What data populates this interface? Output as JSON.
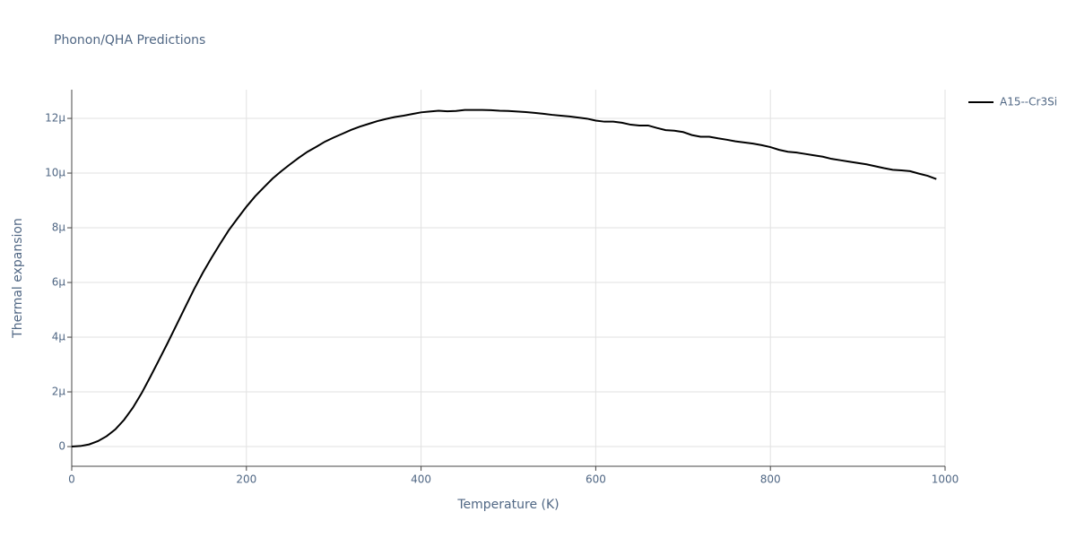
{
  "chart_data": {
    "type": "line",
    "title": "Phonon/QHA Predictions",
    "x_label": "Temperature (K)",
    "y_label": "Thermal expansion",
    "x": [
      0,
      10,
      20,
      30,
      40,
      50,
      60,
      70,
      80,
      90,
      100,
      110,
      120,
      130,
      140,
      150,
      160,
      170,
      180,
      190,
      200,
      210,
      220,
      230,
      240,
      250,
      260,
      270,
      280,
      290,
      300,
      310,
      320,
      330,
      340,
      350,
      360,
      370,
      380,
      390,
      400,
      410,
      420,
      430,
      440,
      450,
      460,
      470,
      480,
      490,
      500,
      510,
      520,
      530,
      540,
      550,
      560,
      570,
      580,
      590,
      600,
      610,
      620,
      630,
      640,
      650,
      660,
      670,
      680,
      690,
      700,
      710,
      720,
      730,
      740,
      750,
      760,
      770,
      780,
      790,
      800,
      810,
      820,
      830,
      840,
      850,
      860,
      870,
      880,
      890,
      900,
      910,
      920,
      930,
      940,
      950,
      960,
      970,
      980,
      990
    ],
    "series": [
      {
        "name": "A15--Cr3Si",
        "color": "#000000",
        "values": [
          0,
          2e-08,
          8e-08,
          2e-07,
          3.8e-07,
          6.3e-07,
          9.8e-07,
          1.42e-06,
          1.95e-06,
          2.55e-06,
          3.17e-06,
          3.8e-06,
          4.45e-06,
          5.1e-06,
          5.75e-06,
          6.35e-06,
          6.9e-06,
          7.42e-06,
          7.92e-06,
          8.35e-06,
          8.77e-06,
          9.15e-06,
          9.48e-06,
          9.8e-06,
          1.007e-05,
          1.032e-05,
          1.056e-05,
          1.078e-05,
          1.096e-05,
          1.115e-05,
          1.13e-05,
          1.144e-05,
          1.158e-05,
          1.17e-05,
          1.18e-05,
          1.19e-05,
          1.198e-05,
          1.205e-05,
          1.21e-05,
          1.216e-05,
          1.222e-05,
          1.225e-05,
          1.228e-05,
          1.226e-05,
          1.227e-05,
          1.231e-05,
          1.231e-05,
          1.231e-05,
          1.23e-05,
          1.228e-05,
          1.227e-05,
          1.225e-05,
          1.223e-05,
          1.22e-05,
          1.217e-05,
          1.213e-05,
          1.21e-05,
          1.207e-05,
          1.203e-05,
          1.199e-05,
          1.192e-05,
          1.188e-05,
          1.188e-05,
          1.184e-05,
          1.177e-05,
          1.174e-05,
          1.174e-05,
          1.165e-05,
          1.157e-05,
          1.155e-05,
          1.15e-05,
          1.139e-05,
          1.133e-05,
          1.133e-05,
          1.127e-05,
          1.122e-05,
          1.116e-05,
          1.112e-05,
          1.108e-05,
          1.102e-05,
          1.095e-05,
          1.085e-05,
          1.078e-05,
          1.075e-05,
          1.07e-05,
          1.065e-05,
          1.06e-05,
          1.052e-05,
          1.047e-05,
          1.042e-05,
          1.037e-05,
          1.032e-05,
          1.025e-05,
          1.018e-05,
          1.012e-05,
          1.01e-05,
          1.007e-05,
          9.98e-06,
          9.9e-06,
          9.78e-06
        ]
      }
    ],
    "xlim": [
      0,
      1000
    ],
    "xticks": [
      0,
      200,
      400,
      600,
      800,
      1000
    ],
    "ylim": [
      -7.2e-07,
      1.305e-05
    ],
    "yticks": [
      0,
      {
        "value": 2e-06,
        "label": "2μ"
      },
      {
        "value": 4e-06,
        "label": "4μ"
      },
      {
        "value": 6e-06,
        "label": "6μ"
      },
      {
        "value": 8e-06,
        "label": "8μ"
      },
      {
        "value": 1e-05,
        "label": "10μ"
      },
      {
        "value": 1.2e-05,
        "label": "12μ"
      }
    ],
    "grid": true,
    "legend": "right"
  }
}
